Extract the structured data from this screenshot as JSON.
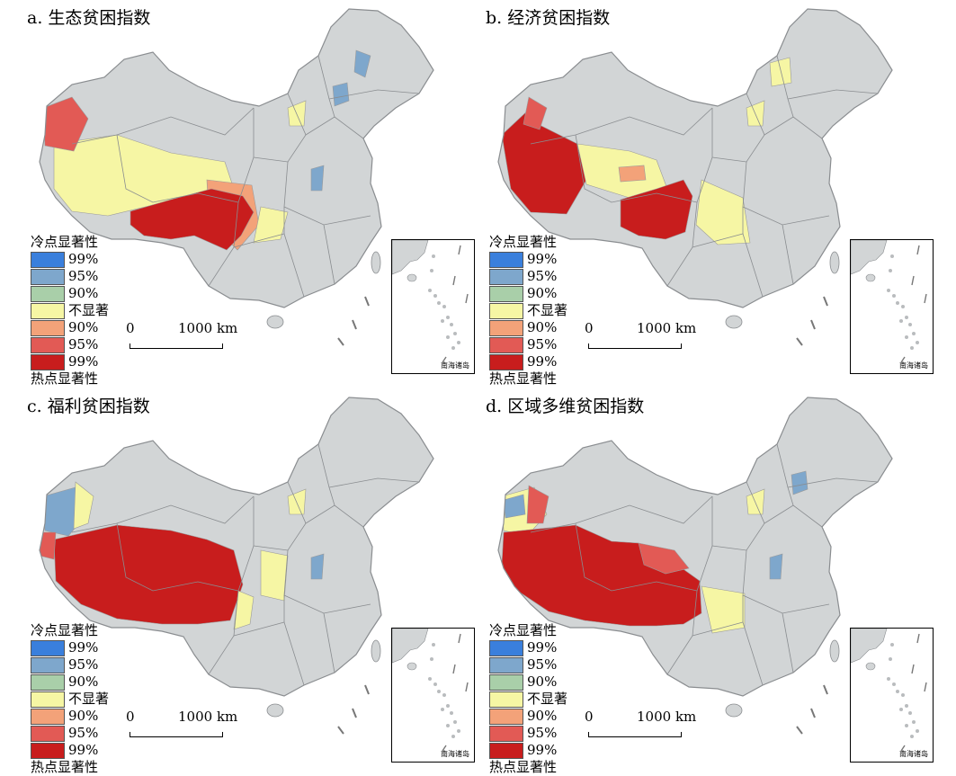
{
  "colors": {
    "cold_99": "#3a7fdc",
    "cold_95": "#7ea7cc",
    "cold_90": "#a9cfa9",
    "not_sig": "#f6f6a4",
    "hot_90": "#f3a279",
    "hot_95": "#e25a55",
    "hot_99": "#c81d1d",
    "base_fill": "#d2d5d6",
    "boundary": "#8a8d90"
  },
  "legend": {
    "cold_heading": "冷点显著性",
    "hot_heading": "热点显著性",
    "items": [
      {
        "label": "99%",
        "color_key": "cold_99"
      },
      {
        "label": "95%",
        "color_key": "cold_95"
      },
      {
        "label": "90%",
        "color_key": "cold_90"
      },
      {
        "label": "不显著",
        "color_key": "not_sig"
      },
      {
        "label": "90%",
        "color_key": "hot_90"
      },
      {
        "label": "95%",
        "color_key": "hot_95"
      },
      {
        "label": "99%",
        "color_key": "hot_99"
      }
    ]
  },
  "scale_bar": {
    "zero": "0",
    "max": "1000 km"
  },
  "inset_label": "南海诸岛",
  "panels": [
    {
      "id": "a",
      "title": "a. 生态贫困指数"
    },
    {
      "id": "b",
      "title": "b. 经济贫困指数"
    },
    {
      "id": "c",
      "title": "c. 福利贫困指数"
    },
    {
      "id": "d",
      "title": "d. 区域多维贫困指数"
    }
  ]
}
